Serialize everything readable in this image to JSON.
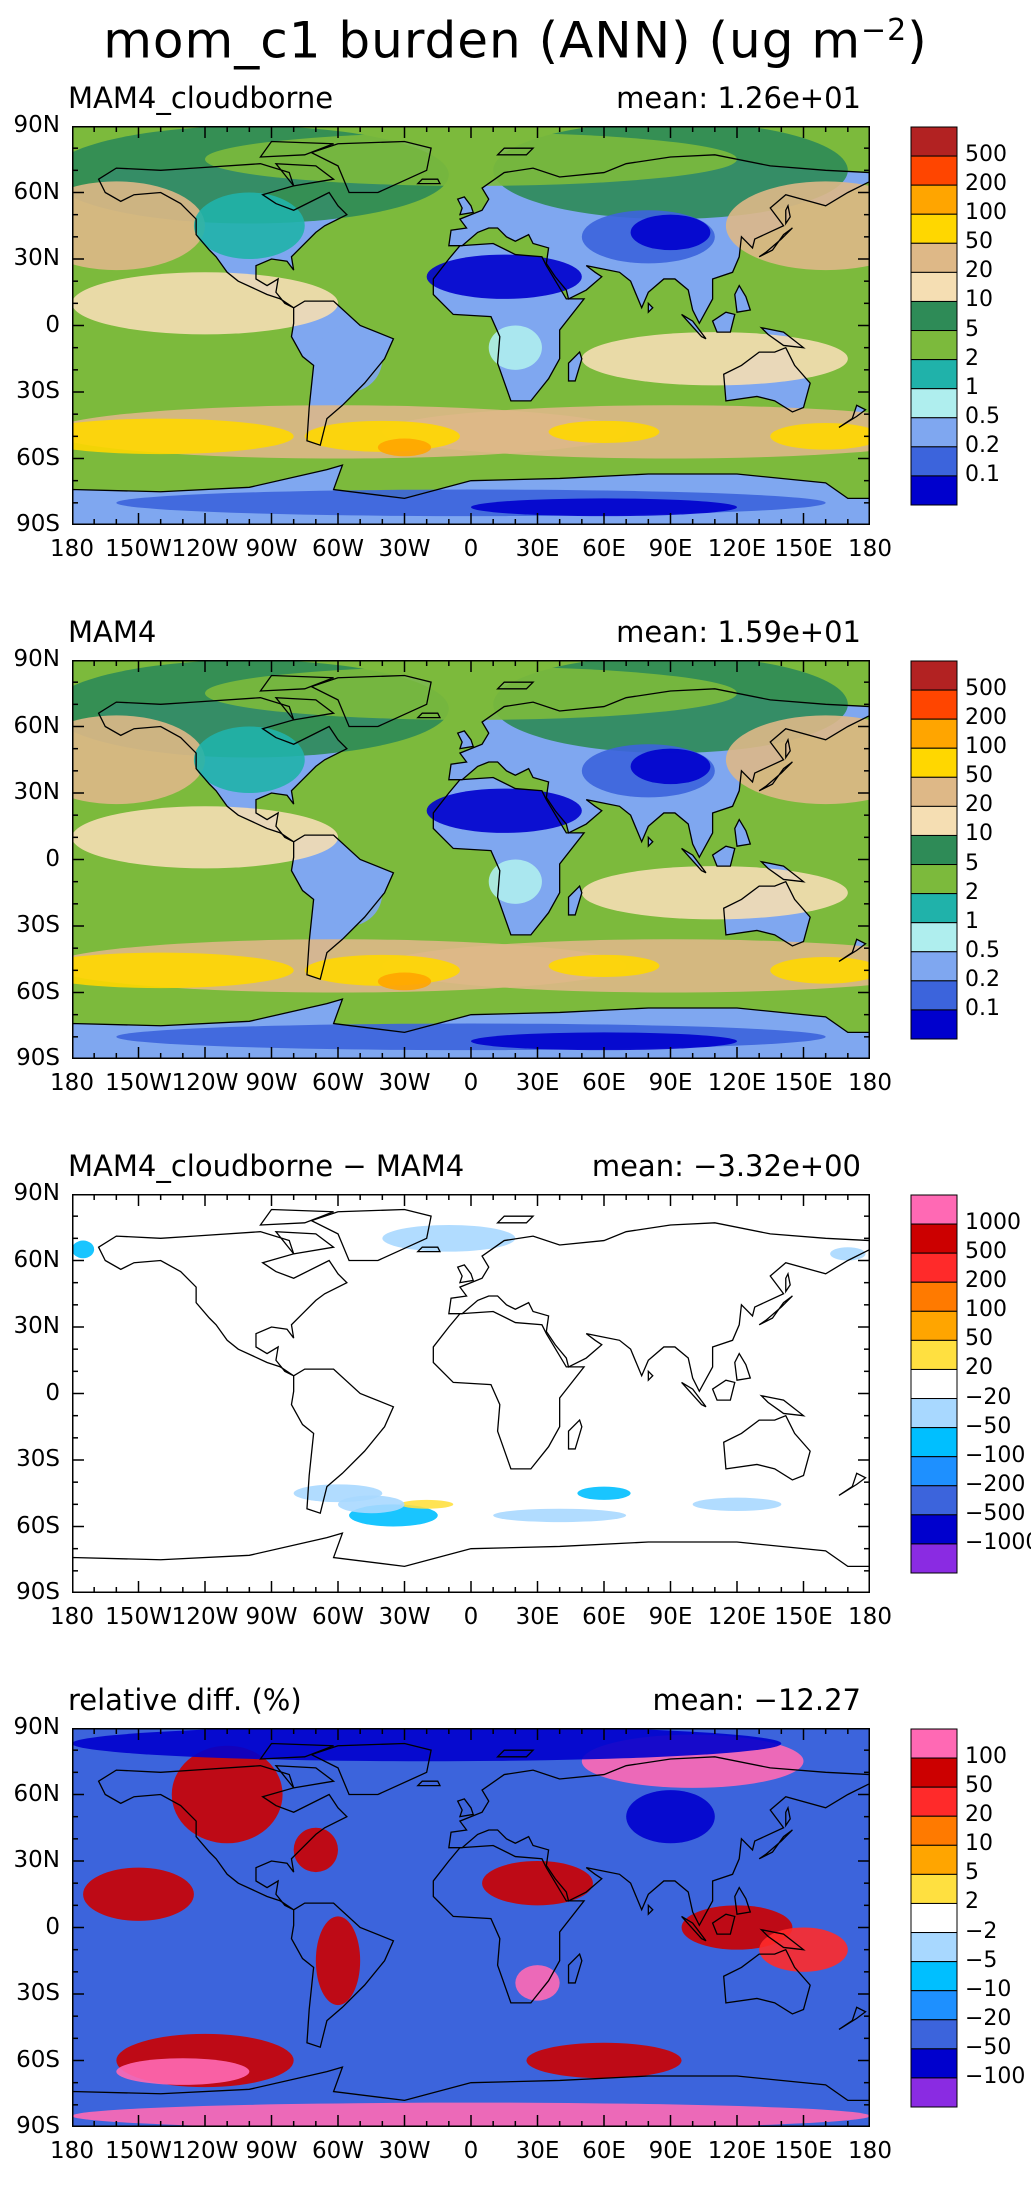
{
  "title": "mom_c1 burden (ANN) (ug m",
  "title_sup": "−2",
  "title_close": ")",
  "lat_ticks": [
    "90N",
    "60N",
    "30N",
    "0",
    "30S",
    "60S",
    "90S"
  ],
  "lon_ticks": [
    "180",
    "150W",
    "120W",
    "90W",
    "60W",
    "30W",
    "0",
    "30E",
    "60E",
    "90E",
    "120E",
    "150E",
    "180"
  ],
  "panels": [
    {
      "label": "MAM4_cloudborne",
      "mean": "mean:  1.26e+01",
      "levels": [
        "500",
        "200",
        "100",
        "50",
        "20",
        "10",
        "5",
        "2",
        "1",
        "0.5",
        "0.2",
        "0.1"
      ],
      "colors": [
        "#b22222",
        "#ff4500",
        "#ffa500",
        "#ffd700",
        "#deb887",
        "#f5deb3",
        "#2e8b57",
        "#7cba3c",
        "#20b2aa",
        "#afeeee",
        "#7fa7f0",
        "#3c64dc",
        "#0000cd"
      ],
      "field": "burden"
    },
    {
      "label": "MAM4",
      "mean": "mean:  1.59e+01",
      "levels": [
        "500",
        "200",
        "100",
        "50",
        "20",
        "10",
        "5",
        "2",
        "1",
        "0.5",
        "0.2",
        "0.1"
      ],
      "colors": [
        "#b22222",
        "#ff4500",
        "#ffa500",
        "#ffd700",
        "#deb887",
        "#f5deb3",
        "#2e8b57",
        "#7cba3c",
        "#20b2aa",
        "#afeeee",
        "#7fa7f0",
        "#3c64dc",
        "#0000cd"
      ],
      "field": "burden"
    },
    {
      "label": "MAM4_cloudborne − MAM4",
      "mean": "mean:  −3.32e+00",
      "levels": [
        "1000",
        "500",
        "200",
        "100",
        "50",
        "20",
        "−20",
        "−50",
        "−100",
        "−200",
        "−500",
        "−1000"
      ],
      "colors": [
        "#ff69b4",
        "#cc0000",
        "#ff2a2a",
        "#ff7a00",
        "#ffa500",
        "#ffe040",
        "#ffffff",
        "#a8d8ff",
        "#00bfff",
        "#1e90ff",
        "#3c64dc",
        "#0000cd",
        "#8a2be2"
      ],
      "field": "diff"
    },
    {
      "label": "relative diff. (%)",
      "mean": "mean: −12.27",
      "levels": [
        "100",
        "50",
        "20",
        "10",
        "5",
        "2",
        "−2",
        "−5",
        "−10",
        "−20",
        "−50",
        "−100"
      ],
      "colors": [
        "#ff69b4",
        "#cc0000",
        "#ff2a2a",
        "#ff7a00",
        "#ffa500",
        "#ffe040",
        "#ffffff",
        "#a8d8ff",
        "#00bfff",
        "#1e90ff",
        "#3c64dc",
        "#0000cd",
        "#8a2be2"
      ],
      "field": "rel"
    }
  ]
}
